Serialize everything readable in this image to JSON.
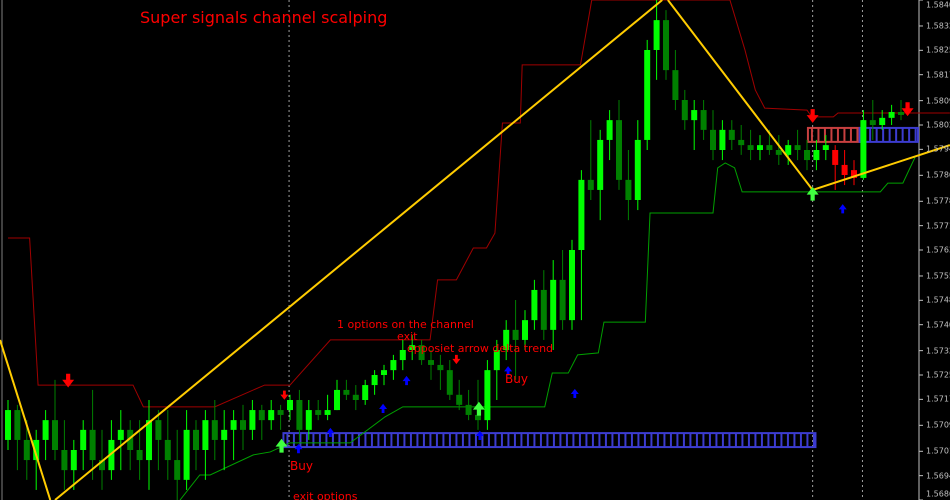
{
  "chart_data": {
    "type": "candlestick",
    "title": "Super signals channel scalping",
    "annotations": {
      "options_channel": "1 options on the channel",
      "exit": "exit",
      "opposite_arrow": "opposiet arrow delta trend",
      "buy_right": "Buy",
      "buy_left": "Buy",
      "exit_options": "exit options"
    },
    "ylim": [
      1.56865,
      1.58405
    ],
    "y_ticks": [
      "1.58405",
      "1.58325",
      "1.58250",
      "1.58175",
      "1.58095",
      "1.58020",
      "1.57945",
      "1.57865",
      "1.57785",
      "1.57710",
      "1.57635",
      "1.57555",
      "1.57480",
      "1.57405",
      "1.57325",
      "1.57250",
      "1.57175",
      "1.57095",
      "1.57015",
      "1.56940",
      "1.56865"
    ],
    "grid": false,
    "colors": {
      "background": "#000000",
      "bull": "#00ff00",
      "bear": "#008000",
      "signal_candle": "#ff0000",
      "upper_channel": "#a00000",
      "lower_channel": "#00a000",
      "zigzag": "#ffcc00",
      "buy_band": "#3c3cd0",
      "sell_band": "#c84040",
      "buy_arrow": "#0000ff",
      "sell_arrow": "#ff0000",
      "entry_arrow": "#40ff40",
      "text": "#ff0000",
      "axis": "#c0c0c0"
    },
    "candles_ohlc": [
      [
        1.5705,
        1.57173,
        1.57019,
        1.57142
      ],
      [
        1.57142,
        1.57158,
        1.56957,
        1.5705
      ],
      [
        1.5705,
        1.57111,
        1.56927,
        1.56988
      ],
      [
        1.56988,
        1.57081,
        1.56896,
        1.5705
      ],
      [
        1.5705,
        1.57142,
        1.56988,
        1.57111
      ],
      [
        1.57111,
        1.57235,
        1.56988,
        1.57019
      ],
      [
        1.57019,
        1.57111,
        1.56896,
        1.56957
      ],
      [
        1.56957,
        1.5705,
        1.56896,
        1.57019
      ],
      [
        1.57019,
        1.57111,
        1.56957,
        1.57081
      ],
      [
        1.57081,
        1.57204,
        1.56927,
        1.56988
      ],
      [
        1.56988,
        1.57081,
        1.56896,
        1.56957
      ],
      [
        1.56957,
        1.57111,
        1.56927,
        1.5705
      ],
      [
        1.5705,
        1.57142,
        1.56957,
        1.57081
      ],
      [
        1.57081,
        1.57111,
        1.56957,
        1.57019
      ],
      [
        1.57019,
        1.57111,
        1.56927,
        1.56988
      ],
      [
        1.56988,
        1.57173,
        1.56896,
        1.57111
      ],
      [
        1.57111,
        1.57142,
        1.56957,
        1.5705
      ],
      [
        1.5705,
        1.57142,
        1.56927,
        1.56988
      ],
      [
        1.56988,
        1.57081,
        1.56865,
        1.56927
      ],
      [
        1.56927,
        1.57142,
        1.56896,
        1.57081
      ],
      [
        1.57081,
        1.57111,
        1.56957,
        1.57019
      ],
      [
        1.57019,
        1.57142,
        1.56927,
        1.57111
      ],
      [
        1.57111,
        1.57173,
        1.56988,
        1.5705
      ],
      [
        1.5705,
        1.57142,
        1.56957,
        1.57081
      ],
      [
        1.57081,
        1.57142,
        1.56988,
        1.57111
      ],
      [
        1.57111,
        1.57158,
        1.57019,
        1.57081
      ],
      [
        1.57081,
        1.57173,
        1.5705,
        1.57142
      ],
      [
        1.57142,
        1.57158,
        1.5705,
        1.57111
      ],
      [
        1.57111,
        1.57173,
        1.57081,
        1.57142
      ],
      [
        1.57142,
        1.57158,
        1.57081,
        1.57127
      ],
      [
        1.57142,
        1.57189,
        1.57111,
        1.57173
      ],
      [
        1.57173,
        1.57204,
        1.5705,
        1.57081
      ],
      [
        1.57081,
        1.57173,
        1.5705,
        1.57142
      ],
      [
        1.57142,
        1.57173,
        1.57111,
        1.57127
      ],
      [
        1.57127,
        1.57189,
        1.57111,
        1.57142
      ],
      [
        1.57142,
        1.57235,
        1.57142,
        1.57204
      ],
      [
        1.57204,
        1.57235,
        1.57173,
        1.57189
      ],
      [
        1.57189,
        1.57219,
        1.57142,
        1.57173
      ],
      [
        1.57173,
        1.57235,
        1.57158,
        1.57219
      ],
      [
        1.57219,
        1.57265,
        1.57189,
        1.5725
      ],
      [
        1.5725,
        1.57281,
        1.57219,
        1.57265
      ],
      [
        1.57265,
        1.57312,
        1.57235,
        1.57296
      ],
      [
        1.57296,
        1.57358,
        1.57265,
        1.57327
      ],
      [
        1.57327,
        1.57373,
        1.57296,
        1.57342
      ],
      [
        1.57342,
        1.57358,
        1.57281,
        1.57296
      ],
      [
        1.57296,
        1.57327,
        1.57235,
        1.57281
      ],
      [
        1.57281,
        1.57312,
        1.57204,
        1.57265
      ],
      [
        1.57265,
        1.57296,
        1.57173,
        1.57189
      ],
      [
        1.57189,
        1.57235,
        1.57142,
        1.57158
      ],
      [
        1.57158,
        1.57204,
        1.57111,
        1.57127
      ],
      [
        1.57127,
        1.57235,
        1.57081,
        1.57111
      ],
      [
        1.57111,
        1.57296,
        1.57081,
        1.57265
      ],
      [
        1.57265,
        1.57358,
        1.57173,
        1.57327
      ],
      [
        1.57327,
        1.57419,
        1.57296,
        1.57389
      ],
      [
        1.57389,
        1.57481,
        1.57235,
        1.57358
      ],
      [
        1.57358,
        1.5745,
        1.57327,
        1.57419
      ],
      [
        1.57419,
        1.57543,
        1.57389,
        1.57512
      ],
      [
        1.57512,
        1.57573,
        1.57358,
        1.57389
      ],
      [
        1.57389,
        1.57604,
        1.57327,
        1.57543
      ],
      [
        1.57543,
        1.57635,
        1.57389,
        1.57419
      ],
      [
        1.57419,
        1.57666,
        1.57389,
        1.57635
      ],
      [
        1.57635,
        1.57881,
        1.57419,
        1.57851
      ],
      [
        1.57851,
        1.58035,
        1.57789,
        1.5782
      ],
      [
        1.5782,
        1.58005,
        1.57727,
        1.57974
      ],
      [
        1.57974,
        1.58066,
        1.57912,
        1.58035
      ],
      [
        1.58035,
        1.58097,
        1.5782,
        1.57851
      ],
      [
        1.57851,
        1.57943,
        1.57727,
        1.57789
      ],
      [
        1.57789,
        1.58035,
        1.57758,
        1.57974
      ],
      [
        1.57974,
        1.58282,
        1.57943,
        1.58251
      ],
      [
        1.58251,
        1.58405,
        1.58159,
        1.58343
      ],
      [
        1.58343,
        1.58374,
        1.58159,
        1.58189
      ],
      [
        1.58189,
        1.58251,
        1.58066,
        1.58097
      ],
      [
        1.58097,
        1.58128,
        1.58005,
        1.58035
      ],
      [
        1.58035,
        1.58097,
        1.57943,
        1.58066
      ],
      [
        1.58066,
        1.58097,
        1.57974,
        1.58005
      ],
      [
        1.58005,
        1.58066,
        1.57912,
        1.57943
      ],
      [
        1.57943,
        1.58035,
        1.57912,
        1.58005
      ],
      [
        1.58005,
        1.58035,
        1.57943,
        1.57974
      ],
      [
        1.57974,
        1.5802,
        1.57928,
        1.57958
      ],
      [
        1.57958,
        1.58005,
        1.57912,
        1.57943
      ],
      [
        1.57943,
        1.57989,
        1.57912,
        1.57958
      ],
      [
        1.57958,
        1.58005,
        1.57928,
        1.57943
      ],
      [
        1.57943,
        1.57989,
        1.57897,
        1.57928
      ],
      [
        1.57928,
        1.57974,
        1.57897,
        1.57958
      ],
      [
        1.57958,
        1.58005,
        1.57912,
        1.57943
      ],
      [
        1.57943,
        1.57974,
        1.57881,
        1.57912
      ],
      [
        1.57912,
        1.57974,
        1.57881,
        1.57943
      ],
      [
        1.57943,
        1.57989,
        1.57912,
        1.57958
      ],
      [
        1.57943,
        1.57958,
        1.5782,
        1.57897
      ],
      [
        1.57897,
        1.57943,
        1.57835,
        1.57866
      ],
      [
        1.57881,
        1.57912,
        1.57835,
        1.57857
      ],
      [
        1.57857,
        1.58066,
        1.57851,
        1.58035
      ],
      [
        1.58035,
        1.58097,
        1.57974,
        1.5802
      ],
      [
        1.5802,
        1.58066,
        1.58005,
        1.58042
      ],
      [
        1.58042,
        1.58082,
        1.5802,
        1.5806
      ],
      [
        1.5806,
        1.58097,
        1.58035,
        1.58051
      ]
    ],
    "signal_candles": [
      88,
      89,
      90
    ],
    "upper_channel": [
      [
        0,
        1.57672
      ],
      [
        2.3,
        1.57672
      ],
      [
        3.2,
        1.57219
      ],
      [
        13.3,
        1.57219
      ],
      [
        14.4,
        1.57152
      ],
      [
        22,
        1.57152
      ],
      [
        27.3,
        1.57219
      ],
      [
        30,
        1.57219
      ],
      [
        34.3,
        1.57358
      ],
      [
        44.9,
        1.57358
      ],
      [
        45.7,
        1.57543
      ],
      [
        47.7,
        1.57543
      ],
      [
        49.5,
        1.57641
      ],
      [
        50.9,
        1.57641
      ],
      [
        51.8,
        1.57687
      ],
      [
        52.6,
        1.58026
      ],
      [
        54.5,
        1.58026
      ],
      [
        54.7,
        1.58205
      ],
      [
        60.9,
        1.58205
      ],
      [
        62.1,
        1.58405
      ],
      [
        76.8,
        1.58405
      ],
      [
        78.4,
        1.58251
      ],
      [
        79.5,
        1.58128
      ],
      [
        80.5,
        1.58072
      ],
      [
        85,
        1.58066
      ],
      [
        85.5,
        1.58045
      ],
      [
        87.8,
        1.58045
      ],
      [
        88.3,
        1.58057
      ],
      [
        100.2,
        1.58057
      ]
    ],
    "lower_channel": [
      [
        18.3,
        1.56865
      ],
      [
        20.4,
        1.56942
      ],
      [
        21.5,
        1.56942
      ],
      [
        26.1,
        1.57004
      ],
      [
        27.9,
        1.57013
      ],
      [
        30,
        1.57041
      ],
      [
        36.4,
        1.57041
      ],
      [
        40.1,
        1.57121
      ],
      [
        42,
        1.57152
      ],
      [
        57.1,
        1.57152
      ],
      [
        57.9,
        1.57256
      ],
      [
        59.6,
        1.57256
      ],
      [
        60.6,
        1.57312
      ],
      [
        62.8,
        1.57318
      ],
      [
        63.4,
        1.57413
      ],
      [
        67.8,
        1.57413
      ],
      [
        68.3,
        1.57749
      ],
      [
        75,
        1.57749
      ],
      [
        75.5,
        1.57888
      ],
      [
        76.3,
        1.57903
      ],
      [
        77.3,
        1.57888
      ],
      [
        78.1,
        1.57814
      ],
      [
        92.8,
        1.57814
      ],
      [
        93.6,
        1.57841
      ],
      [
        95.2,
        1.57841
      ],
      [
        96.5,
        1.57921
      ]
    ],
    "zigzag": [
      [
        [
          -0.85,
          1.57358
        ],
        [
          4.5,
          1.56865
        ]
      ],
      [
        [
          5,
          1.56865
        ],
        [
          69.6,
          1.58405
        ]
      ],
      [
        [
          70.2,
          1.58405
        ],
        [
          85.6,
          1.5782
        ],
        [
          100.2,
          1.57958
        ]
      ]
    ],
    "bands": [
      {
        "kind": "buy",
        "from": 29.3,
        "to": 85.9,
        "low": 1.57028,
        "high": 1.57071
      },
      {
        "kind": "sell",
        "from": 85.1,
        "to": 90.6,
        "low": 1.57968,
        "high": 1.58011
      },
      {
        "kind": "buy",
        "from": 90.6,
        "to": 96.8,
        "low": 1.57968,
        "high": 1.58011
      }
    ],
    "arrows": [
      {
        "kind": "sell",
        "i": 6.4,
        "p": 1.5723,
        "size": "big"
      },
      {
        "kind": "sell",
        "i": 29.4,
        "p": 1.57186,
        "size": "small"
      },
      {
        "kind": "sell",
        "i": 47.7,
        "p": 1.57296,
        "size": "small"
      },
      {
        "kind": "sell",
        "i": 85.6,
        "p": 1.58045,
        "size": "big"
      },
      {
        "kind": "sell",
        "i": 95.7,
        "p": 1.58066,
        "size": "big"
      },
      {
        "kind": "buy",
        "i": 30.9,
        "p": 1.57025,
        "size": "small"
      },
      {
        "kind": "buy",
        "i": 34.3,
        "p": 1.57075,
        "size": "small"
      },
      {
        "kind": "buy",
        "i": 39.9,
        "p": 1.57149,
        "size": "small"
      },
      {
        "kind": "buy",
        "i": 42.4,
        "p": 1.57235,
        "size": "small"
      },
      {
        "kind": "buy",
        "i": 50.2,
        "p": 1.57066,
        "size": "small"
      },
      {
        "kind": "buy",
        "i": 53.2,
        "p": 1.57265,
        "size": "small"
      },
      {
        "kind": "buy",
        "i": 60.3,
        "p": 1.57195,
        "size": "small"
      },
      {
        "kind": "buy",
        "i": 88.8,
        "p": 1.57764,
        "size": "small"
      },
      {
        "kind": "entry",
        "i": 29.1,
        "p": 1.57035,
        "size": "big"
      },
      {
        "kind": "entry",
        "i": 50.1,
        "p": 1.57149,
        "size": "big"
      },
      {
        "kind": "entry",
        "i": 85.6,
        "p": 1.57811,
        "size": "big"
      }
    ],
    "vertical_markers": [
      29.9,
      85.6,
      90.9
    ]
  }
}
